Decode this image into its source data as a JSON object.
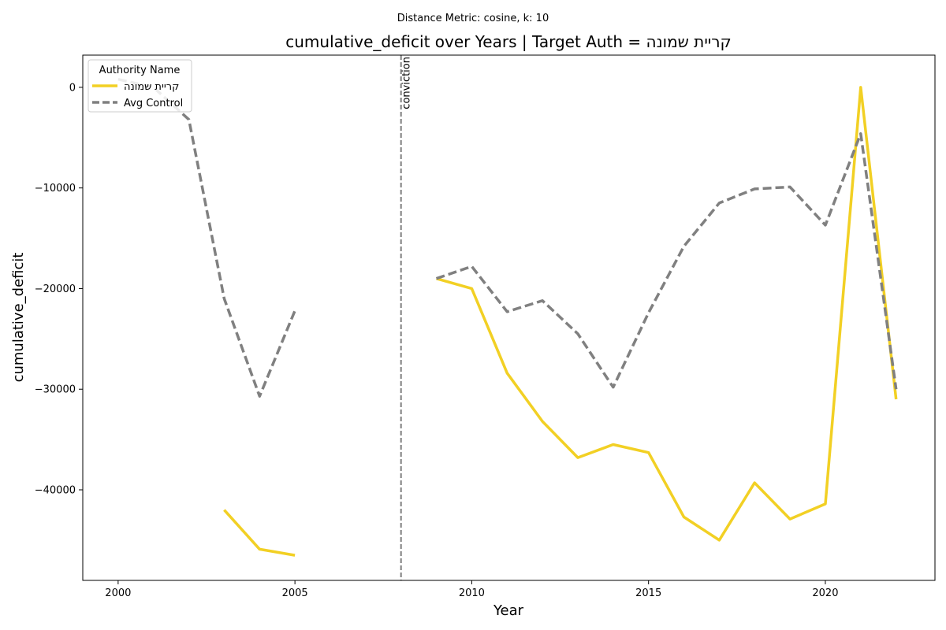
{
  "chart_data": {
    "type": "line",
    "suptitle": "Distance Metric: cosine, k: 10",
    "title": "cumulative_deficit over Years | Target Auth = קריית שמונה",
    "xlabel": "Year",
    "ylabel": "cumulative_deficit",
    "xlim": [
      1999,
      2023.1
    ],
    "ylim": [
      -49000,
      3200
    ],
    "xticks": [
      2000,
      2005,
      2010,
      2015,
      2020
    ],
    "yticks": [
      0,
      -10000,
      -20000,
      -30000,
      -40000
    ],
    "ytick_labels": [
      "0",
      "−10000",
      "−20000",
      "−30000",
      "−40000"
    ],
    "legend": {
      "title": "Authority Name",
      "placement": "top-left",
      "entries": [
        "קריית שמונה",
        "Avg Control"
      ]
    },
    "vline": {
      "x": 2008,
      "label": "conviction",
      "color": "#808080",
      "style": "dashed"
    },
    "series": [
      {
        "name": "קריית שמונה",
        "color": "#f2d024",
        "style": "solid",
        "segments": [
          [
            [
              2003,
              -42000
            ],
            [
              2004,
              -45900
            ],
            [
              2005,
              -46500
            ]
          ],
          [
            [
              2009,
              -19000
            ],
            [
              2010,
              -20000
            ],
            [
              2011,
              -28400
            ],
            [
              2012,
              -33200
            ],
            [
              2013,
              -36800
            ],
            [
              2014,
              -35500
            ],
            [
              2015,
              -36300
            ],
            [
              2016,
              -42700
            ],
            [
              2017,
              -45000
            ],
            [
              2018,
              -39300
            ],
            [
              2019,
              -42900
            ],
            [
              2020,
              -41400
            ],
            [
              2021,
              0
            ],
            [
              2022,
              -31000
            ]
          ]
        ]
      },
      {
        "name": "Avg Control",
        "color": "#808080",
        "style": "dashed",
        "segments": [
          [
            [
              2000,
              800
            ],
            [
              2001,
              0
            ],
            [
              2002,
              -3200
            ],
            [
              2003,
              -21000
            ],
            [
              2004,
              -30700
            ],
            [
              2005,
              -22200
            ]
          ],
          [
            [
              2009,
              -19000
            ],
            [
              2010,
              -17800
            ],
            [
              2011,
              -22300
            ],
            [
              2012,
              -21200
            ],
            [
              2013,
              -24500
            ],
            [
              2014,
              -29800
            ],
            [
              2015,
              -22400
            ],
            [
              2016,
              -15800
            ],
            [
              2017,
              -11500
            ],
            [
              2018,
              -10100
            ],
            [
              2019,
              -9900
            ],
            [
              2020,
              -13700
            ],
            [
              2021,
              -4600
            ],
            [
              2022,
              -30000
            ]
          ]
        ]
      }
    ]
  }
}
